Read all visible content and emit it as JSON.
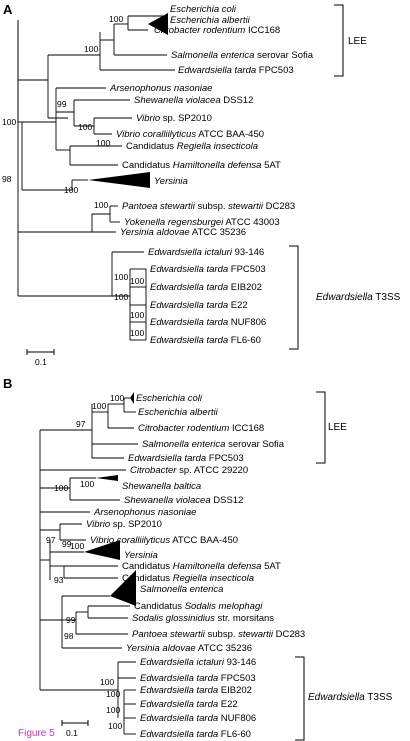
{
  "panels": [
    {
      "letter": "A",
      "taxa": [
        {
          "key": "ecoli",
          "parts": [
            {
              "t": "Escherichia coli",
              "i": true
            }
          ],
          "color": "#000000"
        },
        {
          "key": "ealb",
          "parts": [
            {
              "t": "Escherichia albertii",
              "i": true
            }
          ],
          "color": "#000000"
        },
        {
          "key": "crod",
          "parts": [
            {
              "t": "Citrobacter rodentium",
              "i": true
            },
            {
              "t": " ICC168",
              "i": false
            }
          ],
          "color": "#000000"
        },
        {
          "key": "sent",
          "parts": [
            {
              "t": "Salmonella enterica",
              "i": true
            },
            {
              "t": " serovar Sofia",
              "i": false
            }
          ],
          "color": "#000000"
        },
        {
          "key": "etar",
          "parts": [
            {
              "t": "Edwardsiella tarda",
              "i": true
            },
            {
              "t": " FPC503",
              "i": false
            }
          ],
          "color": "#e8232a"
        },
        {
          "key": "arse",
          "parts": [
            {
              "t": "Arsenophonus nasoniae",
              "i": true
            }
          ],
          "color": "#000000"
        },
        {
          "key": "shvi",
          "parts": [
            {
              "t": "Shewanella violacea",
              "i": true
            },
            {
              "t": " DSS12",
              "i": false
            }
          ],
          "color": "#000000"
        },
        {
          "key": "vibsp",
          "parts": [
            {
              "t": "Vibrio",
              "i": true
            },
            {
              "t": " sp. SP2010",
              "i": false
            }
          ],
          "color": "#000000"
        },
        {
          "key": "vcor",
          "parts": [
            {
              "t": "Vibrio coralliilyticus",
              "i": true
            },
            {
              "t": " ATCC BAA-450",
              "i": false
            }
          ],
          "color": "#000000"
        },
        {
          "key": "regi",
          "parts": [
            {
              "t": "Candidatus ",
              "i": false
            },
            {
              "t": "Regiella insecticola",
              "i": true
            }
          ],
          "color": "#000000"
        },
        {
          "key": "hami",
          "parts": [
            {
              "t": "Candidatus ",
              "i": false
            },
            {
              "t": "Hamiltonella defensa",
              "i": true
            },
            {
              "t": " 5AT",
              "i": false
            }
          ],
          "color": "#000000"
        },
        {
          "key": "yers",
          "parts": [
            {
              "t": "Yersinia",
              "i": true
            }
          ],
          "color": "#000000"
        },
        {
          "key": "pant",
          "parts": [
            {
              "t": "Pantoea stewartii",
              "i": true
            },
            {
              "t": " subsp. ",
              "i": false
            },
            {
              "t": "stewartii",
              "i": true
            },
            {
              "t": " DC283",
              "i": false
            }
          ],
          "color": "#000000"
        },
        {
          "key": "yoke",
          "parts": [
            {
              "t": "Yokenella regensburgei",
              "i": true
            },
            {
              "t": " ATCC 43003",
              "i": false
            }
          ],
          "color": "#000000"
        },
        {
          "key": "yald",
          "parts": [
            {
              "t": "Yersinia aldovae",
              "i": true
            },
            {
              "t": " ATCC 35236",
              "i": false
            }
          ],
          "color": "#000000"
        },
        {
          "key": "eict",
          "parts": [
            {
              "t": "Edwardsiella ictaluri",
              "i": true
            },
            {
              "t": " 93-146",
              "i": false
            }
          ],
          "color": "#000000"
        },
        {
          "key": "et1",
          "parts": [
            {
              "t": "Edwardsiella tarda",
              "i": true
            },
            {
              "t": " FPC503",
              "i": false
            }
          ],
          "color": "#000000"
        },
        {
          "key": "et2",
          "parts": [
            {
              "t": "Edwardsiella tarda",
              "i": true
            },
            {
              "t": " EIB202",
              "i": false
            }
          ],
          "color": "#000000"
        },
        {
          "key": "et3",
          "parts": [
            {
              "t": "Edwardsiella tarda",
              "i": true
            },
            {
              "t": " E22",
              "i": false
            }
          ],
          "color": "#000000"
        },
        {
          "key": "et4",
          "parts": [
            {
              "t": "Edwardsiella tarda",
              "i": true
            },
            {
              "t": " NUF806",
              "i": false
            }
          ],
          "color": "#000000"
        },
        {
          "key": "et5",
          "parts": [
            {
              "t": "Edwardsiella tarda",
              "i": true
            },
            {
              "t": " FL6-60",
              "i": false
            }
          ],
          "color": "#000000"
        }
      ],
      "bootstraps": [
        "100",
        "100",
        "99",
        "100",
        "100",
        "100",
        "98",
        "100",
        "100",
        "100",
        "100",
        "100",
        "100",
        "100"
      ],
      "groups": [
        {
          "key": "lee",
          "parts": [
            {
              "t": "LEE",
              "i": false
            }
          ]
        },
        {
          "key": "t3ss",
          "parts": [
            {
              "t": "Edwardsiella",
              "i": true
            },
            {
              "t": " T3SS",
              "i": false
            }
          ]
        }
      ],
      "scale_label": "0.1"
    },
    {
      "letter": "B",
      "taxa": [
        {
          "key": "ecoli",
          "parts": [
            {
              "t": "Escherichia coli",
              "i": true
            }
          ],
          "color": "#000000"
        },
        {
          "key": "ealb",
          "parts": [
            {
              "t": "Escherichia albertii",
              "i": true
            }
          ],
          "color": "#000000"
        },
        {
          "key": "crod",
          "parts": [
            {
              "t": "Citrobacter rodentium",
              "i": true
            },
            {
              "t": " ICC168",
              "i": false
            }
          ],
          "color": "#000000"
        },
        {
          "key": "sent",
          "parts": [
            {
              "t": "Salmonella enterica",
              "i": true
            },
            {
              "t": " serovar Sofia",
              "i": false
            }
          ],
          "color": "#000000"
        },
        {
          "key": "etar",
          "parts": [
            {
              "t": "Edwardsiella tarda",
              "i": true
            },
            {
              "t": " FPC503",
              "i": false
            }
          ],
          "color": "#e8232a"
        },
        {
          "key": "csp",
          "parts": [
            {
              "t": "Citrobacter",
              "i": true
            },
            {
              "t": " sp. ATCC 29220",
              "i": false
            }
          ],
          "color": "#000000"
        },
        {
          "key": "shba",
          "parts": [
            {
              "t": "Shewanella baltica",
              "i": true
            }
          ],
          "color": "#000000"
        },
        {
          "key": "shvi",
          "parts": [
            {
              "t": "Shewanella violacea",
              "i": true
            },
            {
              "t": " DSS12",
              "i": false
            }
          ],
          "color": "#000000"
        },
        {
          "key": "arse",
          "parts": [
            {
              "t": "Arsenophonus nasoniae",
              "i": true
            }
          ],
          "color": "#000000"
        },
        {
          "key": "vibsp",
          "parts": [
            {
              "t": "Vibrio",
              "i": true
            },
            {
              "t": " sp. SP2010",
              "i": false
            }
          ],
          "color": "#000000"
        },
        {
          "key": "vcor",
          "parts": [
            {
              "t": "Vibrio coralliilyticus",
              "i": true
            },
            {
              "t": " ATCC BAA-450",
              "i": false
            }
          ],
          "color": "#000000"
        },
        {
          "key": "yers",
          "parts": [
            {
              "t": "Yersinia",
              "i": true
            }
          ],
          "color": "#000000"
        },
        {
          "key": "hami",
          "parts": [
            {
              "t": "Candidatus ",
              "i": false
            },
            {
              "t": "Hamiltonella defensa",
              "i": true
            },
            {
              "t": " 5AT",
              "i": false
            }
          ],
          "color": "#000000"
        },
        {
          "key": "regi",
          "parts": [
            {
              "t": "Candidatus ",
              "i": false
            },
            {
              "t": "Regiella insecticola",
              "i": true
            }
          ],
          "color": "#000000"
        },
        {
          "key": "salm",
          "parts": [
            {
              "t": "Salmonella enterica",
              "i": true
            }
          ],
          "color": "#000000"
        },
        {
          "key": "sodm",
          "parts": [
            {
              "t": "Candidatus ",
              "i": false
            },
            {
              "t": "Sodalis melophagi",
              "i": true
            }
          ],
          "color": "#000000"
        },
        {
          "key": "sodg",
          "parts": [
            {
              "t": "Sodalis glossinidius",
              "i": true
            },
            {
              "t": " str. morsitans",
              "i": false
            }
          ],
          "color": "#000000"
        },
        {
          "key": "pant",
          "parts": [
            {
              "t": "Pantoea stewartii",
              "i": true
            },
            {
              "t": " subsp. ",
              "i": false
            },
            {
              "t": "stewartii",
              "i": true
            },
            {
              "t": " DC283",
              "i": false
            }
          ],
          "color": "#000000"
        },
        {
          "key": "yald",
          "parts": [
            {
              "t": "Yersinia aldovae",
              "i": true
            },
            {
              "t": " ATCC 35236",
              "i": false
            }
          ],
          "color": "#000000"
        },
        {
          "key": "eict",
          "parts": [
            {
              "t": "Edwardsiella ictaluri",
              "i": true
            },
            {
              "t": " 93-146",
              "i": false
            }
          ],
          "color": "#000000"
        },
        {
          "key": "et1",
          "parts": [
            {
              "t": "Edwardsiella tarda",
              "i": true
            },
            {
              "t": " FPC503",
              "i": false
            }
          ],
          "color": "#000000"
        },
        {
          "key": "et2",
          "parts": [
            {
              "t": "Edwardsiella tarda",
              "i": true
            },
            {
              "t": " EIB202",
              "i": false
            }
          ],
          "color": "#000000"
        },
        {
          "key": "et3",
          "parts": [
            {
              "t": "Edwardsiella tarda",
              "i": true
            },
            {
              "t": " E22",
              "i": false
            }
          ],
          "color": "#000000"
        },
        {
          "key": "et4",
          "parts": [
            {
              "t": "Edwardsiella tarda",
              "i": true
            },
            {
              "t": " NUF806",
              "i": false
            }
          ],
          "color": "#000000"
        },
        {
          "key": "et5",
          "parts": [
            {
              "t": "Edwardsiella tarda",
              "i": true
            },
            {
              "t": " FL6-60",
              "i": false
            }
          ],
          "color": "#000000"
        }
      ],
      "bootstraps": [
        "100",
        "100",
        "97",
        "100",
        "100",
        "99",
        "97",
        "93",
        "100",
        "99",
        "98",
        "100",
        "100",
        "100",
        "100"
      ],
      "groups": [
        {
          "key": "lee",
          "parts": [
            {
              "t": "LEE",
              "i": false
            }
          ]
        },
        {
          "key": "t3ss",
          "parts": [
            {
              "t": "Edwardsiella",
              "i": true
            },
            {
              "t": " T3SS",
              "i": false
            }
          ]
        }
      ],
      "scale_label": "0.1"
    }
  ],
  "figure_label": "Figure 5",
  "colors": {
    "highlight": "#e8232a",
    "figure_label": "#cc33cc",
    "line": "#000000"
  }
}
